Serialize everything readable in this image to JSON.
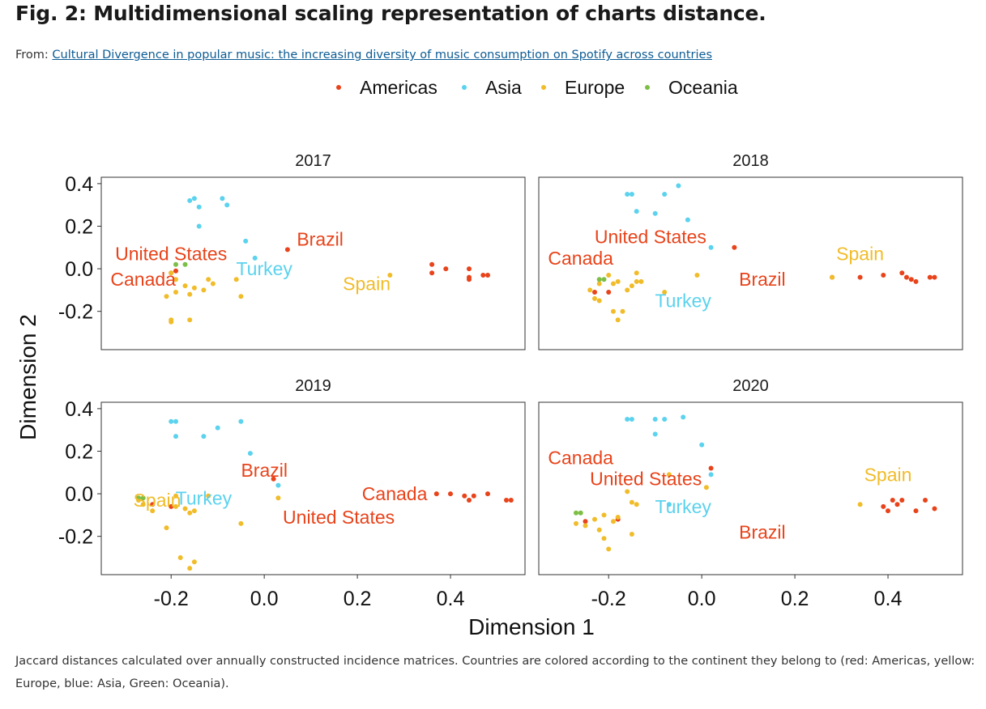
{
  "figure": {
    "title": "Fig. 2: Multidimensional scaling representation of charts distance.",
    "from_label": "From:",
    "source_link": "Cultural Divergence in popular music: the increasing diversity of music consumption on Spotify across countries",
    "caption": "Jaccard distances calculated over annually constructed incidence matrices. Countries are colored according to the continent they belong to (red: Americas, yellow: Europe, blue: Asia, Green: Oceania)."
  },
  "chart_data": {
    "type": "scatter",
    "xlabel": "Dimension 1",
    "ylabel": "Dimension 2",
    "xlim": [
      -0.35,
      0.56
    ],
    "ylim": [
      -0.38,
      0.43
    ],
    "xticks": [
      -0.2,
      0.0,
      0.2,
      0.4
    ],
    "xtick_labels": [
      "-0.2",
      "0.0",
      "0.2",
      "0.4"
    ],
    "yticks": [
      0.4,
      0.2,
      0.0,
      -0.2
    ],
    "ytick_labels": [
      "0.4",
      "0.2",
      "0.0",
      "-0.2"
    ],
    "grid": false,
    "legend_position": "top",
    "legend": [
      {
        "name": "Americas",
        "color": "#E8431A"
      },
      {
        "name": "Asia",
        "color": "#5BD2EE"
      },
      {
        "name": "Europe",
        "color": "#F1BC29"
      },
      {
        "name": "Oceania",
        "color": "#7DBE46"
      }
    ],
    "panels": [
      {
        "title": "2017",
        "points": {
          "Americas": [
            [
              -0.19,
              -0.01
            ],
            [
              -0.2,
              -0.02
            ],
            [
              0.05,
              0.09
            ],
            [
              0.36,
              0.02
            ],
            [
              0.36,
              -0.02
            ],
            [
              0.39,
              0.0
            ],
            [
              0.44,
              0.0
            ],
            [
              0.44,
              -0.04
            ],
            [
              0.44,
              -0.05
            ],
            [
              0.47,
              -0.03
            ],
            [
              0.48,
              -0.03
            ]
          ],
          "Asia": [
            [
              -0.15,
              0.33
            ],
            [
              -0.16,
              0.32
            ],
            [
              -0.09,
              0.33
            ],
            [
              -0.14,
              0.29
            ],
            [
              -0.08,
              0.3
            ],
            [
              -0.14,
              0.2
            ],
            [
              -0.04,
              0.13
            ],
            [
              -0.02,
              0.05
            ]
          ],
          "Europe": [
            [
              -0.2,
              -0.02
            ],
            [
              -0.19,
              -0.05
            ],
            [
              -0.17,
              -0.08
            ],
            [
              -0.21,
              -0.13
            ],
            [
              -0.16,
              -0.12
            ],
            [
              -0.13,
              -0.1
            ],
            [
              -0.12,
              -0.05
            ],
            [
              -0.11,
              -0.07
            ],
            [
              -0.06,
              -0.05
            ],
            [
              -0.05,
              -0.13
            ],
            [
              -0.2,
              -0.24
            ],
            [
              -0.2,
              -0.25
            ],
            [
              -0.16,
              -0.24
            ],
            [
              0.27,
              -0.03
            ],
            [
              -0.15,
              -0.09
            ],
            [
              -0.19,
              -0.11
            ]
          ],
          "Oceania": [
            [
              -0.19,
              0.02
            ],
            [
              -0.17,
              0.02
            ]
          ]
        },
        "labels": [
          {
            "text": "United States",
            "x": -0.2,
            "y": 0.07,
            "group": "Americas"
          },
          {
            "text": "Brazil",
            "x": 0.12,
            "y": 0.14,
            "group": "Americas"
          },
          {
            "text": "Canada",
            "x": -0.26,
            "y": -0.05,
            "group": "Americas"
          },
          {
            "text": "Turkey",
            "x": -0.0,
            "y": 0.0,
            "group": "Asia"
          },
          {
            "text": "Spain",
            "x": 0.22,
            "y": -0.07,
            "group": "Europe"
          }
        ]
      },
      {
        "title": "2018",
        "points": {
          "Americas": [
            [
              -0.23,
              -0.11
            ],
            [
              -0.2,
              -0.11
            ],
            [
              0.07,
              0.1
            ],
            [
              0.28,
              -0.04
            ],
            [
              0.34,
              -0.04
            ],
            [
              0.39,
              -0.03
            ],
            [
              0.43,
              -0.02
            ],
            [
              0.44,
              -0.04
            ],
            [
              0.45,
              -0.05
            ],
            [
              0.46,
              -0.06
            ],
            [
              0.49,
              -0.04
            ],
            [
              0.5,
              -0.04
            ]
          ],
          "Asia": [
            [
              -0.16,
              0.35
            ],
            [
              -0.15,
              0.35
            ],
            [
              -0.08,
              0.35
            ],
            [
              -0.05,
              0.39
            ],
            [
              -0.14,
              0.27
            ],
            [
              -0.1,
              0.26
            ],
            [
              -0.03,
              0.23
            ],
            [
              0.02,
              0.1
            ]
          ],
          "Europe": [
            [
              -0.24,
              -0.1
            ],
            [
              -0.23,
              -0.14
            ],
            [
              -0.22,
              -0.07
            ],
            [
              -0.2,
              -0.03
            ],
            [
              -0.19,
              -0.07
            ],
            [
              -0.18,
              -0.06
            ],
            [
              -0.15,
              -0.08
            ],
            [
              -0.14,
              -0.06
            ],
            [
              -0.14,
              -0.02
            ],
            [
              -0.13,
              -0.06
            ],
            [
              -0.16,
              -0.1
            ],
            [
              -0.08,
              -0.11
            ],
            [
              -0.01,
              -0.03
            ],
            [
              0.28,
              -0.04
            ],
            [
              -0.19,
              -0.2
            ],
            [
              -0.17,
              -0.2
            ],
            [
              -0.18,
              -0.24
            ],
            [
              -0.22,
              -0.15
            ]
          ],
          "Oceania": [
            [
              -0.22,
              -0.05
            ],
            [
              -0.21,
              -0.05
            ]
          ]
        },
        "labels": [
          {
            "text": "United States",
            "x": -0.11,
            "y": 0.15,
            "group": "Americas"
          },
          {
            "text": "Canada",
            "x": -0.26,
            "y": 0.05,
            "group": "Americas"
          },
          {
            "text": "Brazil",
            "x": 0.13,
            "y": -0.05,
            "group": "Americas"
          },
          {
            "text": "Spain",
            "x": 0.34,
            "y": 0.07,
            "group": "Europe"
          },
          {
            "text": "Turkey",
            "x": -0.04,
            "y": -0.15,
            "group": "Asia"
          }
        ]
      },
      {
        "title": "2019",
        "points": {
          "Americas": [
            [
              -0.24,
              -0.05
            ],
            [
              -0.2,
              -0.06
            ],
            [
              0.02,
              0.07
            ],
            [
              0.37,
              0.0
            ],
            [
              0.4,
              0.0
            ],
            [
              0.43,
              -0.01
            ],
            [
              0.44,
              -0.03
            ],
            [
              0.45,
              -0.01
            ],
            [
              0.48,
              0.0
            ],
            [
              0.52,
              -0.03
            ],
            [
              0.53,
              -0.03
            ]
          ],
          "Asia": [
            [
              -0.2,
              0.34
            ],
            [
              -0.19,
              0.34
            ],
            [
              -0.05,
              0.34
            ],
            [
              -0.1,
              0.31
            ],
            [
              -0.19,
              0.27
            ],
            [
              -0.13,
              0.27
            ],
            [
              -0.03,
              0.19
            ],
            [
              0.03,
              0.04
            ]
          ],
          "Europe": [
            [
              -0.27,
              -0.03
            ],
            [
              -0.26,
              -0.05
            ],
            [
              -0.24,
              -0.08
            ],
            [
              -0.19,
              -0.06
            ],
            [
              -0.17,
              -0.07
            ],
            [
              -0.16,
              -0.09
            ],
            [
              -0.15,
              -0.08
            ],
            [
              -0.12,
              -0.01
            ],
            [
              -0.21,
              -0.16
            ],
            [
              -0.05,
              -0.14
            ],
            [
              0.03,
              -0.02
            ],
            [
              -0.18,
              -0.3
            ],
            [
              -0.15,
              -0.32
            ],
            [
              -0.16,
              -0.35
            ],
            [
              -0.19,
              -0.01
            ]
          ],
          "Oceania": [
            [
              -0.27,
              -0.02
            ],
            [
              -0.26,
              -0.02
            ]
          ]
        },
        "labels": [
          {
            "text": "Brazil",
            "x": 0.0,
            "y": 0.11,
            "group": "Americas"
          },
          {
            "text": "Canada",
            "x": 0.28,
            "y": 0.0,
            "group": "Americas"
          },
          {
            "text": "United States",
            "x": 0.16,
            "y": -0.11,
            "group": "Americas"
          },
          {
            "text": "Spain",
            "x": -0.23,
            "y": -0.03,
            "group": "Europe"
          },
          {
            "text": "Turkey",
            "x": -0.13,
            "y": -0.02,
            "group": "Asia"
          }
        ]
      },
      {
        "title": "2020",
        "points": {
          "Americas": [
            [
              -0.25,
              -0.13
            ],
            [
              -0.18,
              -0.12
            ],
            [
              0.02,
              0.12
            ],
            [
              0.39,
              -0.06
            ],
            [
              0.4,
              -0.08
            ],
            [
              0.41,
              -0.03
            ],
            [
              0.42,
              -0.05
            ],
            [
              0.43,
              -0.03
            ],
            [
              0.46,
              -0.08
            ],
            [
              0.48,
              -0.03
            ],
            [
              0.5,
              -0.07
            ]
          ],
          "Asia": [
            [
              -0.16,
              0.35
            ],
            [
              -0.15,
              0.35
            ],
            [
              -0.1,
              0.35
            ],
            [
              -0.08,
              0.35
            ],
            [
              -0.04,
              0.36
            ],
            [
              -0.1,
              0.28
            ],
            [
              0.0,
              0.23
            ],
            [
              0.02,
              0.09
            ],
            [
              -0.07,
              -0.05
            ]
          ],
          "Europe": [
            [
              -0.27,
              -0.14
            ],
            [
              -0.25,
              -0.15
            ],
            [
              -0.23,
              -0.12
            ],
            [
              -0.21,
              -0.1
            ],
            [
              -0.19,
              -0.13
            ],
            [
              -0.22,
              -0.17
            ],
            [
              -0.21,
              -0.21
            ],
            [
              -0.2,
              -0.26
            ],
            [
              -0.18,
              -0.11
            ],
            [
              -0.15,
              -0.19
            ],
            [
              -0.16,
              0.01
            ],
            [
              -0.15,
              -0.04
            ],
            [
              -0.14,
              -0.05
            ],
            [
              -0.07,
              0.09
            ],
            [
              0.01,
              0.03
            ],
            [
              0.34,
              -0.05
            ]
          ],
          "Oceania": [
            [
              -0.27,
              -0.09
            ],
            [
              -0.26,
              -0.09
            ]
          ]
        },
        "labels": [
          {
            "text": "Canada",
            "x": -0.26,
            "y": 0.17,
            "group": "Americas"
          },
          {
            "text": "United States",
            "x": -0.12,
            "y": 0.07,
            "group": "Americas"
          },
          {
            "text": "Brazil",
            "x": 0.13,
            "y": -0.18,
            "group": "Americas"
          },
          {
            "text": "Spain",
            "x": 0.4,
            "y": 0.09,
            "group": "Europe"
          },
          {
            "text": "Turkey",
            "x": -0.04,
            "y": -0.06,
            "group": "Asia"
          }
        ]
      }
    ]
  }
}
